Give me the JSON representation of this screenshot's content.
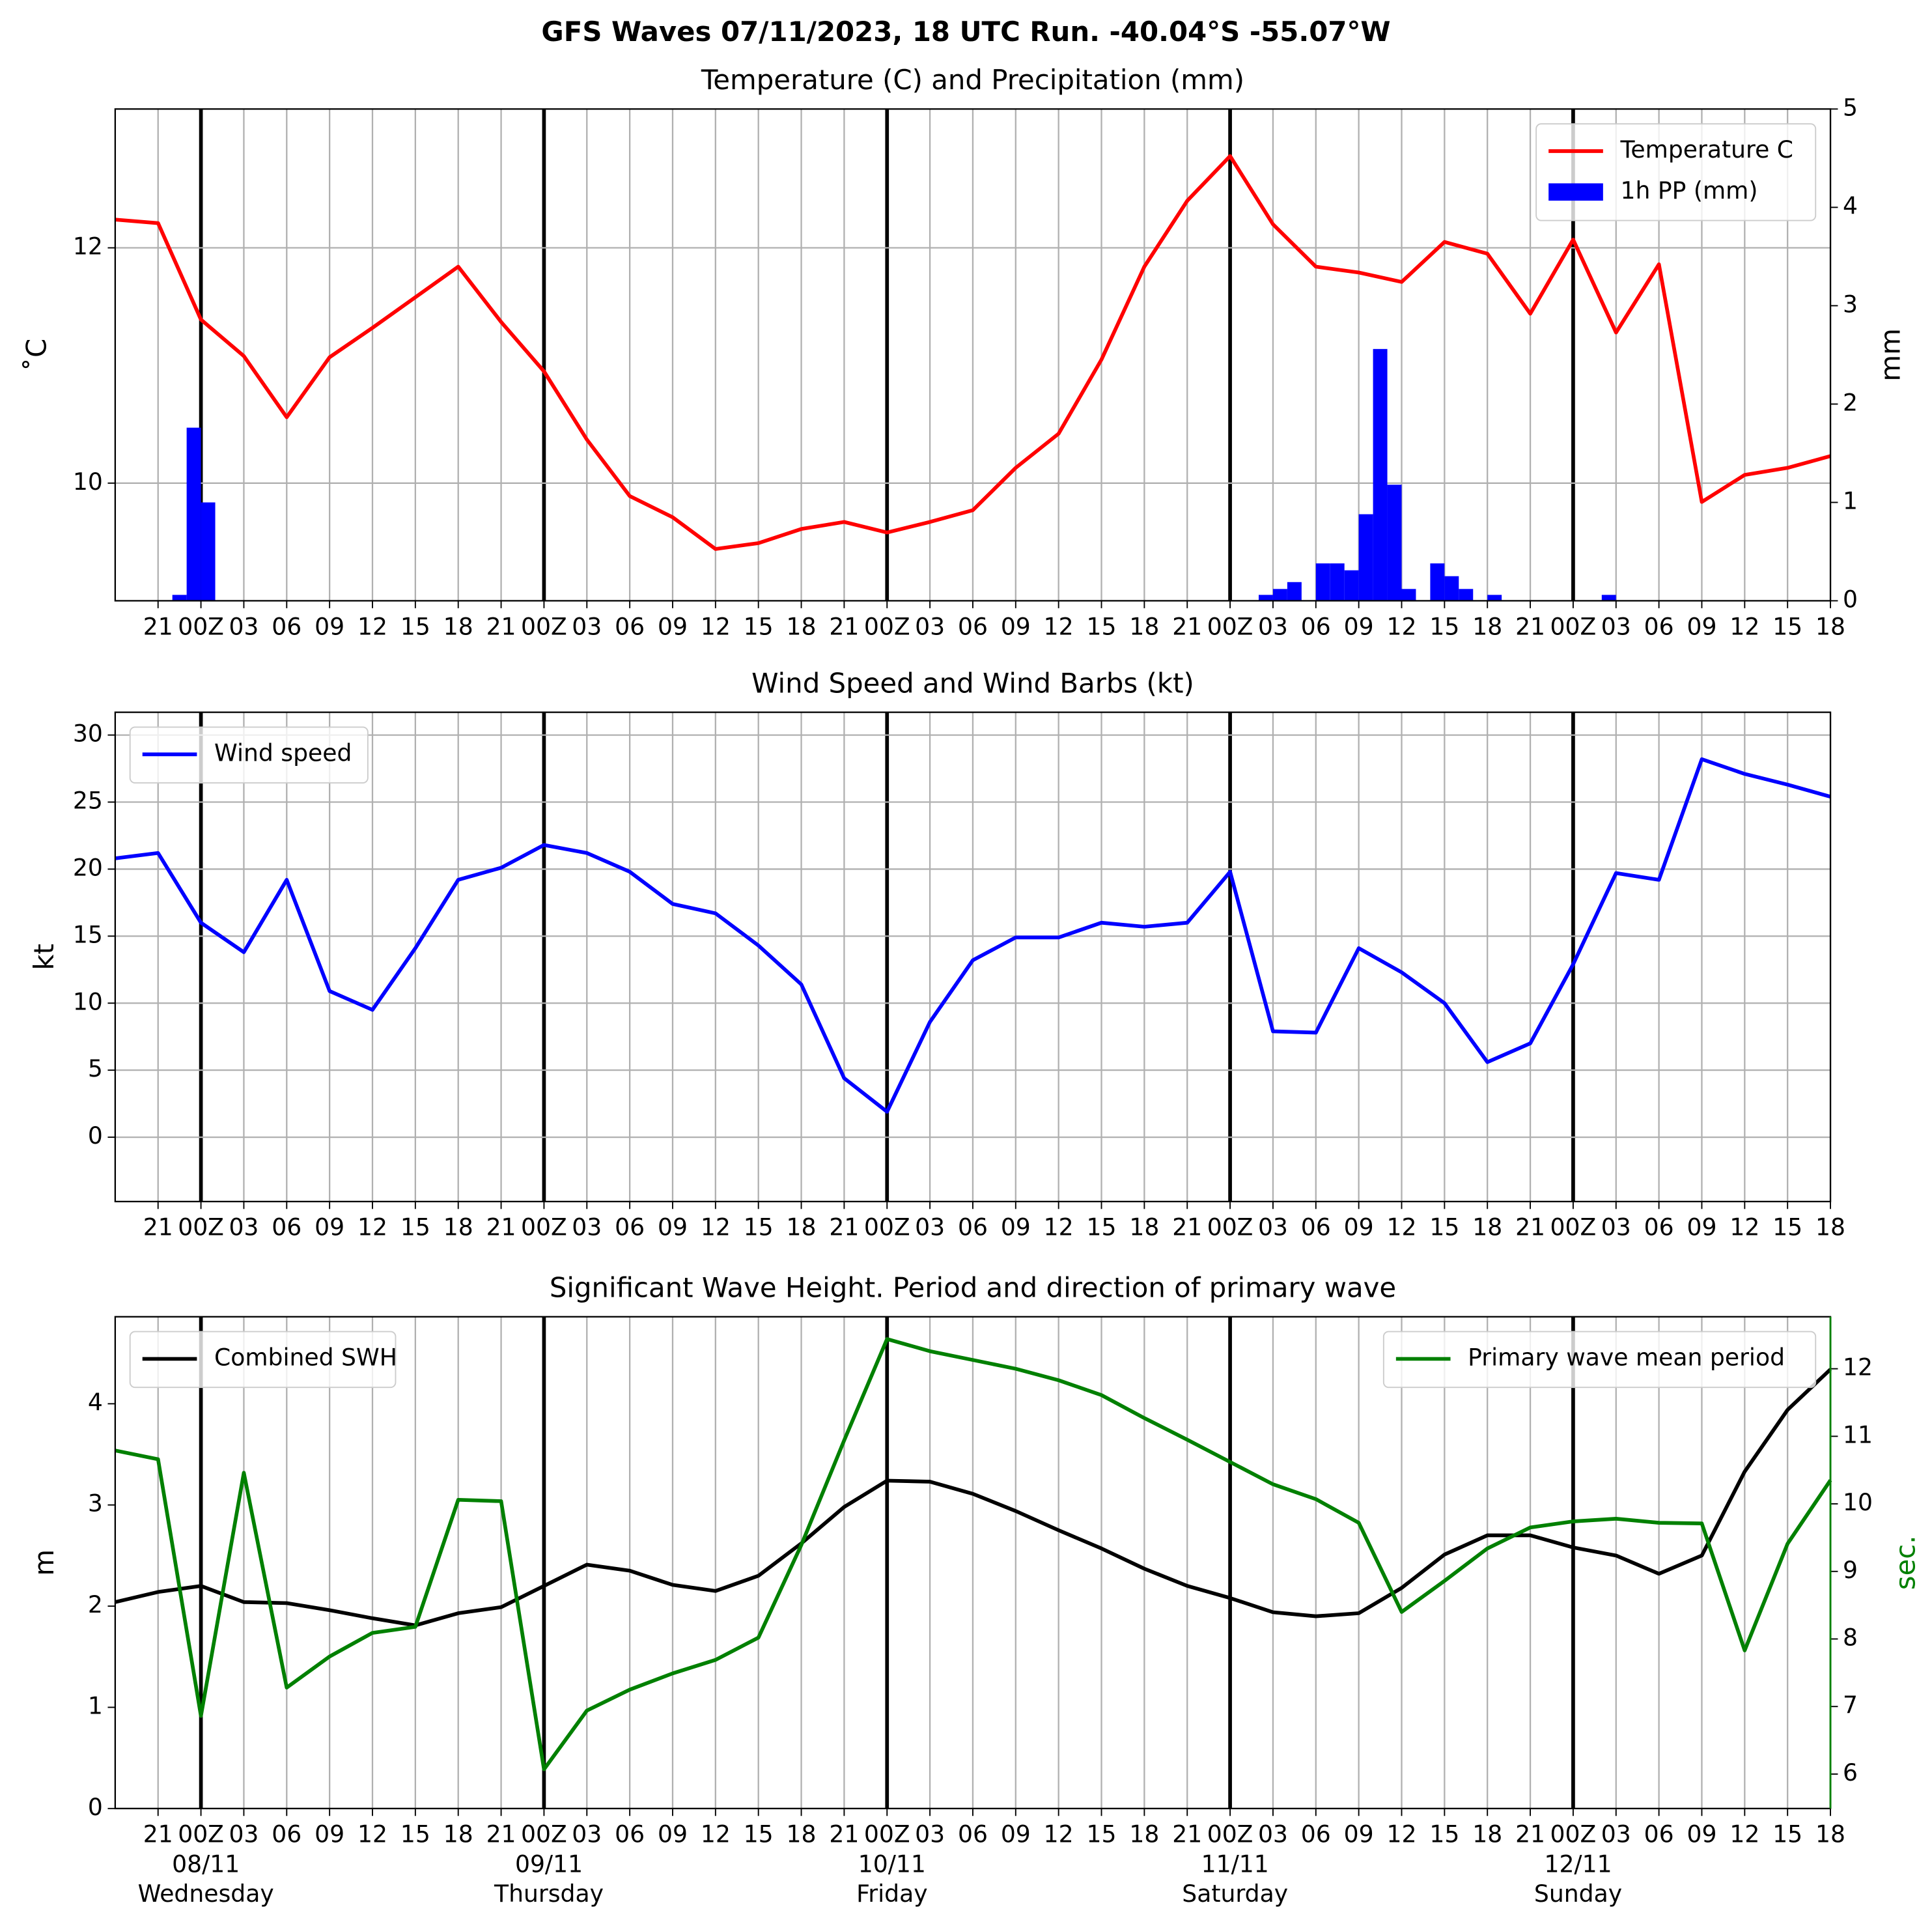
{
  "title": "GFS Waves 07/11/2023, 18 UTC Run. -40.04°S -55.07°W",
  "chart_data": [
    {
      "type": "line",
      "title": "Temperature (C) and Precipitation (mm)",
      "ylabel": "˚C",
      "y2label": "mm",
      "grid": "xy",
      "xlim": [
        "07/11 18",
        "12/11 18"
      ],
      "ylim": [
        9.0,
        13.18
      ],
      "yticks": [
        10,
        12
      ],
      "y2lim": [
        0,
        5
      ],
      "y2ticks": [
        0,
        1,
        2,
        3,
        4,
        5
      ],
      "xticks": [
        {
          "value": "07/11 21",
          "label": "21"
        },
        {
          "value": "08/11 00",
          "label": "00Z"
        },
        {
          "value": "08/11 03",
          "label": "03"
        },
        {
          "value": "08/11 06",
          "label": "06"
        },
        {
          "value": "08/11 09",
          "label": "09"
        },
        {
          "value": "08/11 12",
          "label": "12"
        },
        {
          "value": "08/11 15",
          "label": "15"
        },
        {
          "value": "08/11 18",
          "label": "18"
        },
        {
          "value": "08/11 21",
          "label": "21"
        },
        {
          "value": "09/11 00",
          "label": "00Z"
        },
        {
          "value": "09/11 03",
          "label": "03"
        },
        {
          "value": "09/11 06",
          "label": "06"
        },
        {
          "value": "09/11 09",
          "label": "09"
        },
        {
          "value": "09/11 12",
          "label": "12"
        },
        {
          "value": "09/11 15",
          "label": "15"
        },
        {
          "value": "09/11 18",
          "label": "18"
        },
        {
          "value": "09/11 21",
          "label": "21"
        },
        {
          "value": "10/11 00",
          "label": "00Z"
        },
        {
          "value": "10/11 03",
          "label": "03"
        },
        {
          "value": "10/11 06",
          "label": "06"
        },
        {
          "value": "10/11 09",
          "label": "09"
        },
        {
          "value": "10/11 12",
          "label": "12"
        },
        {
          "value": "10/11 15",
          "label": "15"
        },
        {
          "value": "10/11 18",
          "label": "18"
        },
        {
          "value": "10/11 21",
          "label": "21"
        },
        {
          "value": "11/11 00",
          "label": "00Z"
        },
        {
          "value": "11/11 03",
          "label": "03"
        },
        {
          "value": "11/11 06",
          "label": "06"
        },
        {
          "value": "11/11 09",
          "label": "09"
        },
        {
          "value": "11/11 12",
          "label": "12"
        },
        {
          "value": "11/11 15",
          "label": "15"
        },
        {
          "value": "11/11 18",
          "label": "18"
        },
        {
          "value": "11/11 21",
          "label": "21"
        },
        {
          "value": "12/11 00",
          "label": "00Z"
        },
        {
          "value": "12/11 03",
          "label": "03"
        },
        {
          "value": "12/11 06",
          "label": "06"
        },
        {
          "value": "12/11 09",
          "label": "09"
        },
        {
          "value": "12/11 12",
          "label": "12"
        },
        {
          "value": "12/11 15",
          "label": "15"
        },
        {
          "value": "12/11 18",
          "label": "18"
        }
      ],
      "x": [
        "07/11 18",
        "07/11 21",
        "08/11 00",
        "08/11 03",
        "08/11 06",
        "08/11 09",
        "08/11 12",
        "08/11 15",
        "08/11 18",
        "08/11 21",
        "09/11 00",
        "09/11 03",
        "09/11 06",
        "09/11 09",
        "09/11 12",
        "09/11 15",
        "09/11 18",
        "09/11 21",
        "10/11 00",
        "10/11 03",
        "10/11 06",
        "10/11 09",
        "10/11 12",
        "10/11 15",
        "10/11 18",
        "10/11 21",
        "11/11 00",
        "11/11 03",
        "11/11 06",
        "11/11 09",
        "11/11 12",
        "11/11 15",
        "11/11 18",
        "11/11 21",
        "12/11 00",
        "12/11 03",
        "12/11 06",
        "12/11 09",
        "12/11 12",
        "12/11 15",
        "12/11 18"
      ],
      "series": [
        {
          "name": "Temperature C",
          "color": "#ff0000",
          "legend": "upper right",
          "values": [
            12.24,
            12.21,
            11.39,
            11.08,
            10.56,
            11.07,
            11.32,
            11.58,
            11.84,
            11.37,
            10.95,
            10.37,
            9.89,
            9.71,
            9.44,
            9.49,
            9.61,
            9.67,
            9.58,
            9.67,
            9.77,
            10.13,
            10.42,
            11.05,
            11.84,
            12.4,
            12.78,
            12.2,
            11.84,
            11.79,
            11.71,
            12.05,
            11.95,
            11.44,
            12.07,
            11.28,
            11.86,
            9.84,
            10.07,
            10.13,
            10.23
          ]
        },
        {
          "name": "1h PP (mm)",
          "color": "#0000ff",
          "type": "bar",
          "axis": "y2",
          "legend": "upper right",
          "x": [
            "07/11 22",
            "07/11 23",
            "08/11 00",
            "11/11 02",
            "11/11 03",
            "11/11 04",
            "11/11 06",
            "11/11 07",
            "11/11 08",
            "11/11 09",
            "11/11 10",
            "11/11 11",
            "11/11 12",
            "11/11 14",
            "11/11 15",
            "11/11 16",
            "11/11 18",
            "12/11 02"
          ],
          "values": [
            0.06,
            1.76,
            1.0,
            0.06,
            0.12,
            0.19,
            0.38,
            0.38,
            0.31,
            0.88,
            2.56,
            1.18,
            0.12,
            0.38,
            0.25,
            0.12,
            0.06,
            0.06
          ]
        }
      ]
    },
    {
      "type": "line",
      "title": "Wind Speed and Wind Barbs (kt)",
      "ylabel": "kt",
      "grid": "xy",
      "xlim": [
        "07/11 18",
        "12/11 18"
      ],
      "ylim": [
        -4.8,
        31.7
      ],
      "yticks": [
        0,
        5,
        10,
        15,
        20,
        25,
        30
      ],
      "xticks": [
        {
          "value": "07/11 21",
          "label": "21"
        },
        {
          "value": "08/11 00",
          "label": "00Z"
        },
        {
          "value": "08/11 03",
          "label": "03"
        },
        {
          "value": "08/11 06",
          "label": "06"
        },
        {
          "value": "08/11 09",
          "label": "09"
        },
        {
          "value": "08/11 12",
          "label": "12"
        },
        {
          "value": "08/11 15",
          "label": "15"
        },
        {
          "value": "08/11 18",
          "label": "18"
        },
        {
          "value": "08/11 21",
          "label": "21"
        },
        {
          "value": "09/11 00",
          "label": "00Z"
        },
        {
          "value": "09/11 03",
          "label": "03"
        },
        {
          "value": "09/11 06",
          "label": "06"
        },
        {
          "value": "09/11 09",
          "label": "09"
        },
        {
          "value": "09/11 12",
          "label": "12"
        },
        {
          "value": "09/11 15",
          "label": "15"
        },
        {
          "value": "09/11 18",
          "label": "18"
        },
        {
          "value": "09/11 21",
          "label": "21"
        },
        {
          "value": "10/11 00",
          "label": "00Z"
        },
        {
          "value": "10/11 03",
          "label": "03"
        },
        {
          "value": "10/11 06",
          "label": "06"
        },
        {
          "value": "10/11 09",
          "label": "09"
        },
        {
          "value": "10/11 12",
          "label": "12"
        },
        {
          "value": "10/11 15",
          "label": "15"
        },
        {
          "value": "10/11 18",
          "label": "18"
        },
        {
          "value": "10/11 21",
          "label": "21"
        },
        {
          "value": "11/11 00",
          "label": "00Z"
        },
        {
          "value": "11/11 03",
          "label": "03"
        },
        {
          "value": "11/11 06",
          "label": "06"
        },
        {
          "value": "11/11 09",
          "label": "09"
        },
        {
          "value": "11/11 12",
          "label": "12"
        },
        {
          "value": "11/11 15",
          "label": "15"
        },
        {
          "value": "11/11 18",
          "label": "18"
        },
        {
          "value": "11/11 21",
          "label": "21"
        },
        {
          "value": "12/11 00",
          "label": "00Z"
        },
        {
          "value": "12/11 03",
          "label": "03"
        },
        {
          "value": "12/11 06",
          "label": "06"
        },
        {
          "value": "12/11 09",
          "label": "09"
        },
        {
          "value": "12/11 12",
          "label": "12"
        },
        {
          "value": "12/11 15",
          "label": "15"
        },
        {
          "value": "12/11 18",
          "label": "18"
        }
      ],
      "x": [
        "07/11 18",
        "07/11 21",
        "08/11 00",
        "08/11 03",
        "08/11 06",
        "08/11 09",
        "08/11 12",
        "08/11 15",
        "08/11 18",
        "08/11 21",
        "09/11 00",
        "09/11 03",
        "09/11 06",
        "09/11 09",
        "09/11 12",
        "09/11 15",
        "09/11 18",
        "09/11 21",
        "10/11 00",
        "10/11 03",
        "10/11 06",
        "10/11 09",
        "10/11 12",
        "10/11 15",
        "10/11 18",
        "10/11 21",
        "11/11 00",
        "11/11 03",
        "11/11 06",
        "11/11 09",
        "11/11 12",
        "11/11 15",
        "11/11 18",
        "11/11 21",
        "12/11 00",
        "12/11 03",
        "12/11 06",
        "12/11 09",
        "12/11 12",
        "12/11 15",
        "12/11 18"
      ],
      "series": [
        {
          "name": "Wind speed",
          "color": "#0000ff",
          "legend": "upper left",
          "values": [
            20.8,
            21.2,
            16.0,
            13.8,
            19.2,
            10.9,
            9.5,
            14.1,
            19.2,
            20.1,
            21.8,
            21.2,
            19.8,
            17.4,
            16.7,
            14.3,
            11.4,
            4.4,
            1.9,
            8.6,
            13.2,
            14.9,
            14.9,
            16.0,
            15.7,
            16.0,
            19.8,
            7.9,
            7.8,
            14.1,
            12.3,
            10.0,
            5.6,
            7.0,
            12.9,
            19.7,
            19.2,
            28.2,
            27.1,
            26.3,
            25.4
          ]
        }
      ]
    },
    {
      "type": "line",
      "title": "Significant Wave Height. Period and direction of primary wave",
      "ylabel": "m",
      "y2label": "sec.",
      "y2color": "#008000",
      "grid": "x",
      "xlim": [
        "07/11 18",
        "12/11 18"
      ],
      "ylim": [
        0,
        4.86
      ],
      "yticks": [
        0,
        1,
        2,
        3,
        4
      ],
      "y2lim": [
        5.49,
        12.77
      ],
      "y2ticks": [
        6,
        7,
        8,
        9,
        10,
        11,
        12
      ],
      "xticks": [
        {
          "value": "07/11 21",
          "label": "21"
        },
        {
          "value": "08/11 00",
          "label": "00Z"
        },
        {
          "value": "08/11 03",
          "label": "03"
        },
        {
          "value": "08/11 06",
          "label": "06"
        },
        {
          "value": "08/11 09",
          "label": "09"
        },
        {
          "value": "08/11 12",
          "label": "12"
        },
        {
          "value": "08/11 15",
          "label": "15"
        },
        {
          "value": "08/11 18",
          "label": "18"
        },
        {
          "value": "08/11 21",
          "label": "21"
        },
        {
          "value": "09/11 00",
          "label": "00Z"
        },
        {
          "value": "09/11 03",
          "label": "03"
        },
        {
          "value": "09/11 06",
          "label": "06"
        },
        {
          "value": "09/11 09",
          "label": "09"
        },
        {
          "value": "09/11 12",
          "label": "12"
        },
        {
          "value": "09/11 15",
          "label": "15"
        },
        {
          "value": "09/11 18",
          "label": "18"
        },
        {
          "value": "09/11 21",
          "label": "21"
        },
        {
          "value": "10/11 00",
          "label": "00Z"
        },
        {
          "value": "10/11 03",
          "label": "03"
        },
        {
          "value": "10/11 06",
          "label": "06"
        },
        {
          "value": "10/11 09",
          "label": "09"
        },
        {
          "value": "10/11 12",
          "label": "12"
        },
        {
          "value": "10/11 15",
          "label": "15"
        },
        {
          "value": "10/11 18",
          "label": "18"
        },
        {
          "value": "10/11 21",
          "label": "21"
        },
        {
          "value": "11/11 00",
          "label": "00Z"
        },
        {
          "value": "11/11 03",
          "label": "03"
        },
        {
          "value": "11/11 06",
          "label": "06"
        },
        {
          "value": "11/11 09",
          "label": "09"
        },
        {
          "value": "11/11 12",
          "label": "12"
        },
        {
          "value": "11/11 15",
          "label": "15"
        },
        {
          "value": "11/11 18",
          "label": "18"
        },
        {
          "value": "11/11 21",
          "label": "21"
        },
        {
          "value": "12/11 00",
          "label": "00Z"
        },
        {
          "value": "12/11 03",
          "label": "03"
        },
        {
          "value": "12/11 06",
          "label": "06"
        },
        {
          "value": "12/11 09",
          "label": "09"
        },
        {
          "value": "12/11 12",
          "label": "12"
        },
        {
          "value": "12/11 15",
          "label": "15"
        },
        {
          "value": "12/11 18",
          "label": "18"
        }
      ],
      "day_labels": [
        {
          "value": "08/11 00",
          "date": "08/11",
          "weekday": "Wednesday"
        },
        {
          "value": "09/11 00",
          "date": "09/11",
          "weekday": "Thursday"
        },
        {
          "value": "10/11 00",
          "date": "10/11",
          "weekday": "Friday"
        },
        {
          "value": "11/11 00",
          "date": "11/11",
          "weekday": "Saturday"
        },
        {
          "value": "12/11 00",
          "date": "12/11",
          "weekday": "Sunday"
        }
      ],
      "x": [
        "07/11 18",
        "07/11 21",
        "08/11 00",
        "08/11 03",
        "08/11 06",
        "08/11 09",
        "08/11 12",
        "08/11 15",
        "08/11 18",
        "08/11 21",
        "09/11 00",
        "09/11 03",
        "09/11 06",
        "09/11 09",
        "09/11 12",
        "09/11 15",
        "09/11 18",
        "09/11 21",
        "10/11 00",
        "10/11 03",
        "10/11 06",
        "10/11 09",
        "10/11 12",
        "10/11 15",
        "10/11 18",
        "10/11 21",
        "11/11 00",
        "11/11 03",
        "11/11 06",
        "11/11 09",
        "11/11 12",
        "11/11 15",
        "11/11 18",
        "11/11 21",
        "12/11 00",
        "12/11 03",
        "12/11 06",
        "12/11 09",
        "12/11 12",
        "12/11 15",
        "12/11 18"
      ],
      "series": [
        {
          "name": "Combined SWH",
          "color": "#000000",
          "legend": "upper left",
          "values": [
            2.04,
            2.14,
            2.2,
            2.04,
            2.03,
            1.96,
            1.88,
            1.81,
            1.93,
            1.99,
            2.2,
            2.41,
            2.35,
            2.21,
            2.15,
            2.3,
            2.62,
            2.98,
            3.24,
            3.23,
            3.11,
            2.94,
            2.75,
            2.57,
            2.37,
            2.2,
            2.08,
            1.94,
            1.9,
            1.93,
            2.18,
            2.51,
            2.7,
            2.7,
            2.58,
            2.5,
            2.32,
            2.5,
            3.33,
            3.94,
            4.34
          ]
        },
        {
          "name": "Primary wave mean period",
          "color": "#008000",
          "axis": "y2",
          "legend": "upper right",
          "values": [
            10.79,
            10.66,
            6.86,
            10.46,
            7.28,
            7.74,
            8.09,
            8.18,
            10.06,
            10.04,
            6.07,
            6.94,
            7.25,
            7.49,
            7.69,
            8.02,
            9.39,
            10.94,
            12.44,
            12.26,
            12.13,
            12.0,
            11.83,
            11.61,
            11.27,
            10.95,
            10.62,
            10.29,
            10.07,
            9.72,
            8.4,
            8.86,
            9.34,
            9.65,
            9.74,
            9.78,
            9.72,
            9.71,
            7.83,
            9.41,
            10.35
          ]
        }
      ]
    }
  ]
}
